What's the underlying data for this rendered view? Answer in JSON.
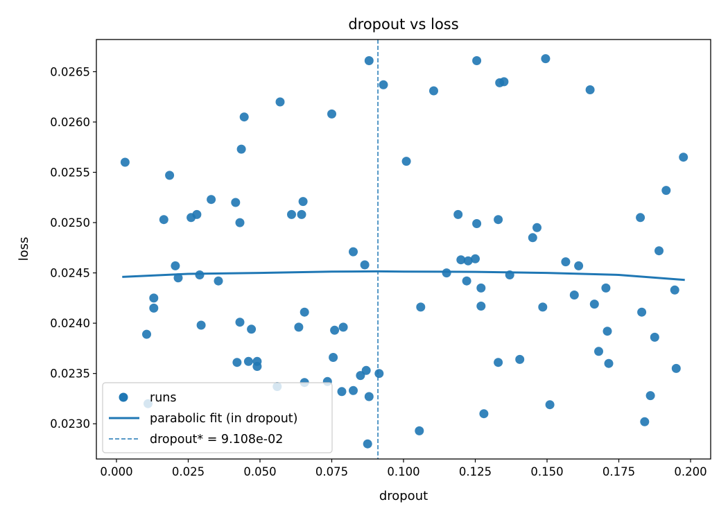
{
  "chart_data": {
    "type": "scatter",
    "title": "dropout vs loss",
    "xlabel": "dropout",
    "ylabel": "loss",
    "xlim": [
      -0.007,
      0.207
    ],
    "ylim": [
      0.02265,
      0.02682
    ],
    "xticks": [
      0.0,
      0.025,
      0.05,
      0.075,
      0.1,
      0.125,
      0.15,
      0.175,
      0.2
    ],
    "xtick_labels": [
      "0.000",
      "0.025",
      "0.050",
      "0.075",
      "0.100",
      "0.125",
      "0.150",
      "0.175",
      "0.200"
    ],
    "yticks": [
      0.023,
      0.0235,
      0.024,
      0.0245,
      0.025,
      0.0255,
      0.026,
      0.0265
    ],
    "ytick_labels": [
      "0.0230",
      "0.0235",
      "0.0240",
      "0.0245",
      "0.0250",
      "0.0255",
      "0.0260",
      "0.0265"
    ],
    "grid": false,
    "legend_position": "lower-left",
    "colors": {
      "points": "#1f77b4",
      "fit": "#1f77b4",
      "vline": "#1f77b4"
    },
    "legend": {
      "runs": "runs",
      "fit": "parabolic fit (in dropout)",
      "vline": "dropout* = 9.108e-02"
    },
    "optimum_x": 0.09108,
    "fit_curve": {
      "x": [
        0.002,
        0.025,
        0.05,
        0.075,
        0.09108,
        0.1,
        0.125,
        0.15,
        0.175,
        0.198
      ],
      "y": [
        0.02446,
        0.02449,
        0.0245,
        0.024513,
        0.024515,
        0.024513,
        0.02451,
        0.0245,
        0.02448,
        0.02443
      ]
    },
    "series": [
      {
        "name": "runs",
        "points": [
          [
            0.003,
            0.0256
          ],
          [
            0.0105,
            0.02389
          ],
          [
            0.011,
            0.0232
          ],
          [
            0.013,
            0.02425
          ],
          [
            0.013,
            0.02415
          ],
          [
            0.0165,
            0.02503
          ],
          [
            0.0185,
            0.02547
          ],
          [
            0.0205,
            0.02457
          ],
          [
            0.0215,
            0.02445
          ],
          [
            0.026,
            0.02505
          ],
          [
            0.028,
            0.02508
          ],
          [
            0.029,
            0.02448
          ],
          [
            0.0295,
            0.02398
          ],
          [
            0.033,
            0.02523
          ],
          [
            0.0355,
            0.02442
          ],
          [
            0.0415,
            0.0252
          ],
          [
            0.042,
            0.02361
          ],
          [
            0.043,
            0.02401
          ],
          [
            0.043,
            0.025
          ],
          [
            0.0435,
            0.02573
          ],
          [
            0.0445,
            0.02605
          ],
          [
            0.046,
            0.02362
          ],
          [
            0.047,
            0.02394
          ],
          [
            0.049,
            0.02357
          ],
          [
            0.049,
            0.02362
          ],
          [
            0.056,
            0.02337
          ],
          [
            0.057,
            0.0262
          ],
          [
            0.061,
            0.02508
          ],
          [
            0.0635,
            0.02396
          ],
          [
            0.0645,
            0.02508
          ],
          [
            0.065,
            0.02521
          ],
          [
            0.0655,
            0.02341
          ],
          [
            0.0655,
            0.02411
          ],
          [
            0.0735,
            0.02342
          ],
          [
            0.075,
            0.02608
          ],
          [
            0.0755,
            0.02366
          ],
          [
            0.076,
            0.02393
          ],
          [
            0.0785,
            0.02332
          ],
          [
            0.079,
            0.02396
          ],
          [
            0.0825,
            0.02333
          ],
          [
            0.0825,
            0.02471
          ],
          [
            0.085,
            0.02348
          ],
          [
            0.0865,
            0.02458
          ],
          [
            0.087,
            0.02353
          ],
          [
            0.0875,
            0.0228
          ],
          [
            0.088,
            0.02327
          ],
          [
            0.088,
            0.02661
          ],
          [
            0.0915,
            0.0235
          ],
          [
            0.093,
            0.02637
          ],
          [
            0.101,
            0.02561
          ],
          [
            0.1055,
            0.02293
          ],
          [
            0.106,
            0.02416
          ],
          [
            0.1105,
            0.02631
          ],
          [
            0.115,
            0.0245
          ],
          [
            0.119,
            0.02508
          ],
          [
            0.12,
            0.02463
          ],
          [
            0.122,
            0.02442
          ],
          [
            0.1225,
            0.02462
          ],
          [
            0.125,
            0.02464
          ],
          [
            0.1255,
            0.02499
          ],
          [
            0.1255,
            0.02661
          ],
          [
            0.127,
            0.02417
          ],
          [
            0.127,
            0.02435
          ],
          [
            0.128,
            0.0231
          ],
          [
            0.133,
            0.02361
          ],
          [
            0.133,
            0.02503
          ],
          [
            0.1335,
            0.02639
          ],
          [
            0.135,
            0.0264
          ],
          [
            0.137,
            0.02448
          ],
          [
            0.1405,
            0.02364
          ],
          [
            0.145,
            0.02485
          ],
          [
            0.1465,
            0.02495
          ],
          [
            0.1485,
            0.02416
          ],
          [
            0.1495,
            0.02663
          ],
          [
            0.151,
            0.02319
          ],
          [
            0.1565,
            0.02461
          ],
          [
            0.1595,
            0.02428
          ],
          [
            0.161,
            0.02457
          ],
          [
            0.165,
            0.02632
          ],
          [
            0.1665,
            0.02419
          ],
          [
            0.168,
            0.02372
          ],
          [
            0.1705,
            0.02435
          ],
          [
            0.171,
            0.02392
          ],
          [
            0.1715,
            0.0236
          ],
          [
            0.1825,
            0.02505
          ],
          [
            0.183,
            0.02411
          ],
          [
            0.184,
            0.02302
          ],
          [
            0.186,
            0.02328
          ],
          [
            0.1875,
            0.02386
          ],
          [
            0.189,
            0.02472
          ],
          [
            0.1915,
            0.02532
          ],
          [
            0.1945,
            0.02433
          ],
          [
            0.195,
            0.02355
          ],
          [
            0.1975,
            0.02565
          ]
        ]
      }
    ]
  }
}
